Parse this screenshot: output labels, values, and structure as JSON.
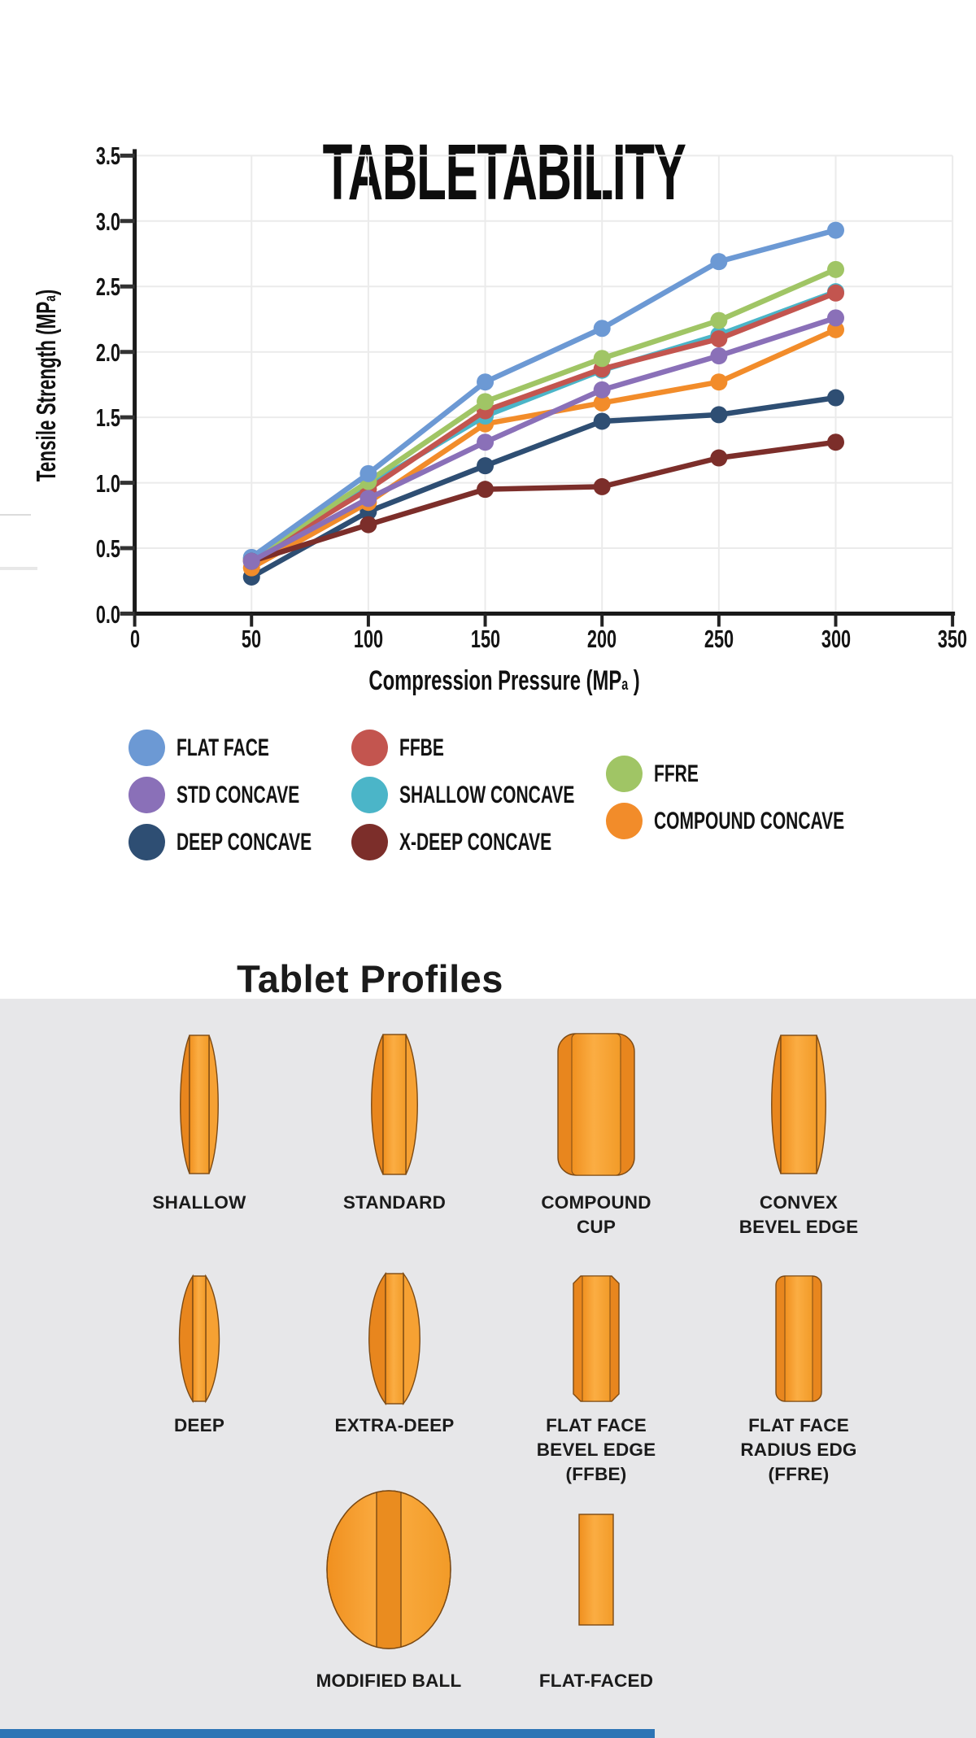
{
  "title": "TABLETABILITY",
  "chart_data": {
    "type": "line",
    "x": [
      50,
      100,
      150,
      200,
      250,
      300
    ],
    "series": [
      {
        "name": "FLAT FACE",
        "color": "#6C99D4",
        "values": [
          0.43,
          1.07,
          1.77,
          2.18,
          2.69,
          2.93
        ]
      },
      {
        "name": "FFRE",
        "color": "#A0C565",
        "values": [
          0.42,
          1.01,
          1.62,
          1.95,
          2.24,
          2.63
        ]
      },
      {
        "name": "SHALLOW CONCAVE",
        "color": "#4BB5C8",
        "values": [
          0.42,
          0.98,
          1.51,
          1.86,
          2.13,
          2.46
        ]
      },
      {
        "name": "FFBE",
        "color": "#C3554F",
        "values": [
          0.41,
          0.95,
          1.55,
          1.87,
          2.1,
          2.45
        ]
      },
      {
        "name": "STD CONCAVE",
        "color": "#8A70B8",
        "values": [
          0.4,
          0.88,
          1.31,
          1.71,
          1.97,
          2.26
        ]
      },
      {
        "name": "COMPOUND CONCAVE",
        "color": "#F28C2A",
        "values": [
          0.35,
          0.85,
          1.45,
          1.61,
          1.77,
          2.17
        ]
      },
      {
        "name": "DEEP CONCAVE",
        "color": "#2E4E73",
        "values": [
          0.28,
          0.78,
          1.13,
          1.47,
          1.52,
          1.65
        ]
      },
      {
        "name": "X-DEEP CONCAVE",
        "color": "#7C2E2A",
        "values": [
          0.4,
          0.68,
          0.95,
          0.97,
          1.19,
          1.31
        ]
      }
    ],
    "xlabel": {
      "pre": "Compression Pressure (MP",
      "sub": "a",
      "post": " )"
    },
    "ylabel": {
      "pre": "Tensile Strength (MP",
      "sub": "a",
      "post": ")"
    },
    "xlim": [
      0,
      350
    ],
    "ylim": [
      0,
      3.5
    ],
    "xticks": [
      0,
      50,
      100,
      150,
      200,
      250,
      300,
      350
    ],
    "yticks": [
      "0.0",
      "0.5",
      "1.0",
      "1.5",
      "2.0",
      "2.5",
      "3.0",
      "3.5"
    ],
    "grid": true,
    "legend_position": "below"
  },
  "legend": {
    "columns": [
      [
        {
          "label": "FLAT FACE",
          "color": "#6C99D4"
        },
        {
          "label": "STD CONCAVE",
          "color": "#8A70B8"
        },
        {
          "label": "DEEP CONCAVE",
          "color": "#2E4E73"
        }
      ],
      [
        {
          "label": "FFBE",
          "color": "#C3554F"
        },
        {
          "label": "SHALLOW CONCAVE",
          "color": "#4BB5C8"
        },
        {
          "label": "X-DEEP CONCAVE",
          "color": "#7C2E2A"
        }
      ],
      [
        {
          "label": "FFRE",
          "color": "#A0C565"
        },
        {
          "label": "COMPOUND CONCAVE",
          "color": "#F28C2A"
        }
      ]
    ]
  },
  "profiles": {
    "heading": "Tablet Profiles",
    "rows": [
      [
        {
          "label": "SHALLOW",
          "kind": "shallow"
        },
        {
          "label": "STANDARD",
          "kind": "standard"
        },
        {
          "label": "COMPOUND\nCUP",
          "kind": "compound-cup"
        },
        {
          "label": "CONVEX\nBEVEL EDGE",
          "kind": "convex-bevel"
        }
      ],
      [
        {
          "label": "DEEP",
          "kind": "deep"
        },
        {
          "label": "EXTRA-DEEP",
          "kind": "extra-deep"
        },
        {
          "label": "FLAT FACE\nBEVEL EDGE\n(FFBE)",
          "kind": "ffbe"
        },
        {
          "label": "FLAT FACE\nRADIUS EDG\n(FFRE)",
          "kind": "ffre"
        }
      ],
      [
        {
          "label": "MODIFIED BALL",
          "kind": "modified-ball"
        },
        {
          "label": "FLAT-FACED",
          "kind": "flat-faced"
        }
      ]
    ]
  },
  "colors": {
    "panel_bg": "#e7e7e9",
    "grid": "#ebebeb",
    "axis": "#1a1a1a",
    "footer_accent": "#2d74b5",
    "tablet_main": "#F59C30",
    "tablet_dark": "#E8861E",
    "tablet_light": "#FBAD43",
    "tablet_outline": "#7C4A14"
  }
}
